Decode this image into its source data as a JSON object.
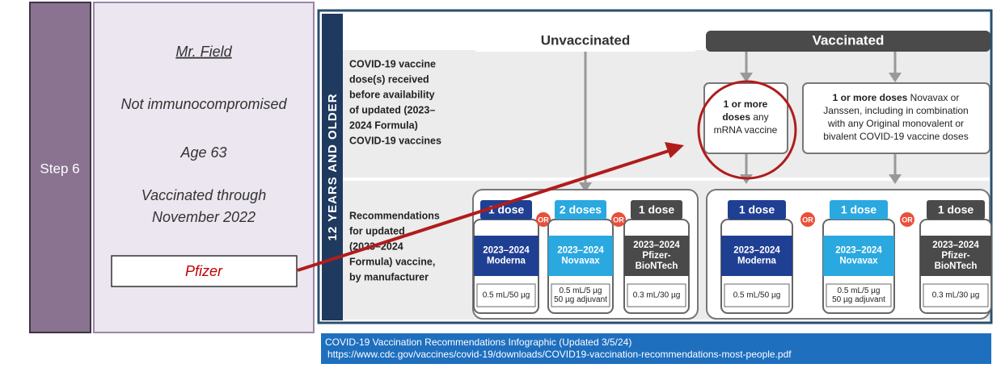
{
  "step_label": "Step 6",
  "patient": {
    "name": "Mr. Field",
    "details": [
      "Not immunocompromised",
      "Age 63",
      "Vaccinated through",
      "November 2022"
    ],
    "selected": "Pfizer"
  },
  "infographic": {
    "side_label": "12 YEARS AND OLDER",
    "columns": [
      "Unvaccinated",
      "Vaccinated"
    ],
    "row_labels": [
      [
        "COVID-19 vaccine",
        "dose(s) received",
        "before availability",
        "of updated (2023–",
        "2024 Formula)",
        "COVID-19 vaccines"
      ],
      [
        "Recommendations",
        "for updated",
        "(2023–2024",
        "Formula) vaccine,",
        "by manufacturer"
      ]
    ],
    "history_boxes": [
      {
        "lines": [
          {
            "bold": "1 or more"
          },
          {
            "bold": "doses",
            "rest": " any"
          },
          {
            "rest": "mRNA vaccine"
          }
        ]
      },
      {
        "lines": [
          {
            "bold": "1 or more doses",
            "rest": " Novavax or"
          },
          {
            "rest": "Janssen, including in combination"
          },
          {
            "rest": "with any Original monovalent or"
          },
          {
            "rest": "bivalent COVID-19 vaccine doses"
          }
        ]
      }
    ],
    "or_label": "OR",
    "vial_groups": [
      [
        {
          "dose": "1 dose",
          "lines": [
            "2023–2024",
            "Moderna"
          ],
          "amount": [
            "0.5 mL/50 µg"
          ]
        },
        {
          "dose": "2 doses",
          "lines": [
            "2023–2024",
            "Novavax"
          ],
          "amount": [
            "0.5 mL/5 µg",
            "50 µg adjuvant"
          ]
        },
        {
          "dose": "1 dose",
          "lines": [
            "2023–2024",
            "Pfizer-",
            "BioNTech"
          ],
          "amount": [
            "0.3 mL/30 µg"
          ]
        }
      ],
      [
        {
          "dose": "1 dose",
          "lines": [
            "2023–2024",
            "Moderna"
          ],
          "amount": [
            "0.5 mL/50 µg"
          ]
        },
        {
          "dose": "1 dose",
          "lines": [
            "2023–2024",
            "Novavax"
          ],
          "amount": [
            "0.5 mL/5 µg",
            "50 µg adjuvant"
          ]
        },
        {
          "dose": "1 dose",
          "lines": [
            "2023–2024",
            "Pfizer-",
            "BioNTech"
          ],
          "amount": [
            "0.3 mL/30 µg"
          ]
        }
      ]
    ]
  },
  "caption": {
    "title": "COVID-19 Vaccination Recommendations Infographic (Updated 3/5/24)",
    "url": "https://www.cdc.gov/vaccines/covid-19/downloads/COVID19-vaccination-recommendations-most-people.pdf"
  }
}
